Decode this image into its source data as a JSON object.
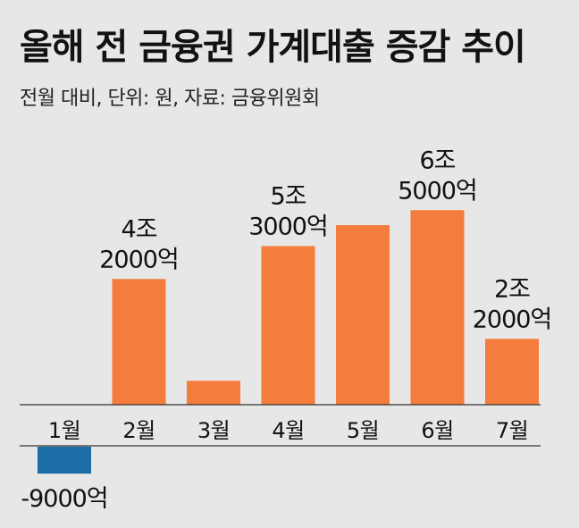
{
  "title": "올해 전 금융권 가계대출 증감 추이",
  "subtitle": "전월 대비, 단위: 원, 자료: 금융위원회",
  "colors": {
    "background": "#e7e7e7",
    "positive": "#f47c3c",
    "negative": "#1c6fa6",
    "axis": "#333333"
  },
  "chart_data": {
    "type": "bar",
    "title": "올해 전 금융권 가계대출 증감 추이",
    "subtitle": "전월 대비, 단위: 원, 자료: 금융위원회",
    "categories": [
      "1월",
      "2월",
      "3월",
      "4월",
      "5월",
      "6월",
      "7월"
    ],
    "values": [
      -0.9,
      4.2,
      0.8,
      5.3,
      6.0,
      6.5,
      2.2
    ],
    "data_labels": [
      [
        "-9000억"
      ],
      [
        "4조",
        "2000억"
      ],
      [],
      [
        "5조",
        "3000억"
      ],
      [],
      [
        "6조",
        "5000억"
      ],
      [
        "2조",
        "2000억"
      ]
    ],
    "unit": "조 원",
    "ylim": [
      -1.5,
      7.0
    ],
    "grid": false,
    "legend": "none"
  }
}
